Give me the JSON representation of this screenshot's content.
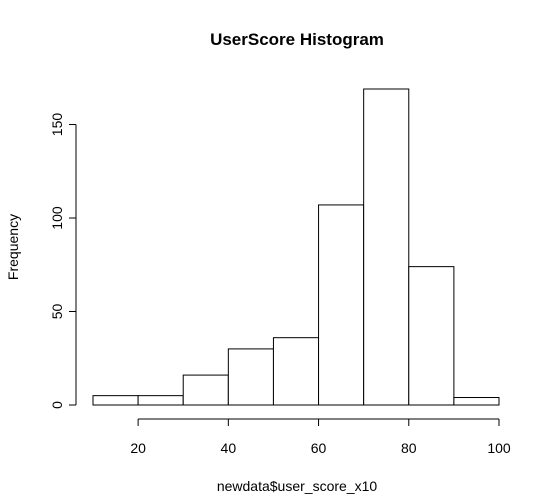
{
  "chart_data": {
    "type": "bar",
    "title": "UserScore Histogram",
    "xlabel": "newdata$user_score_x10",
    "ylabel": "Frequency",
    "bins": [
      {
        "from": 10,
        "to": 20,
        "count": 5
      },
      {
        "from": 20,
        "to": 30,
        "count": 5
      },
      {
        "from": 30,
        "to": 40,
        "count": 16
      },
      {
        "from": 40,
        "to": 50,
        "count": 30
      },
      {
        "from": 50,
        "to": 60,
        "count": 36
      },
      {
        "from": 60,
        "to": 70,
        "count": 107
      },
      {
        "from": 70,
        "to": 80,
        "count": 169
      },
      {
        "from": 80,
        "to": 90,
        "count": 74
      },
      {
        "from": 90,
        "to": 100,
        "count": 4
      }
    ],
    "xticks": [
      20,
      40,
      60,
      80,
      100
    ],
    "yticks": [
      0,
      50,
      100,
      150
    ],
    "xlim": [
      10,
      100
    ],
    "ylim": [
      0,
      169
    ],
    "grid": false,
    "legend": "none"
  }
}
